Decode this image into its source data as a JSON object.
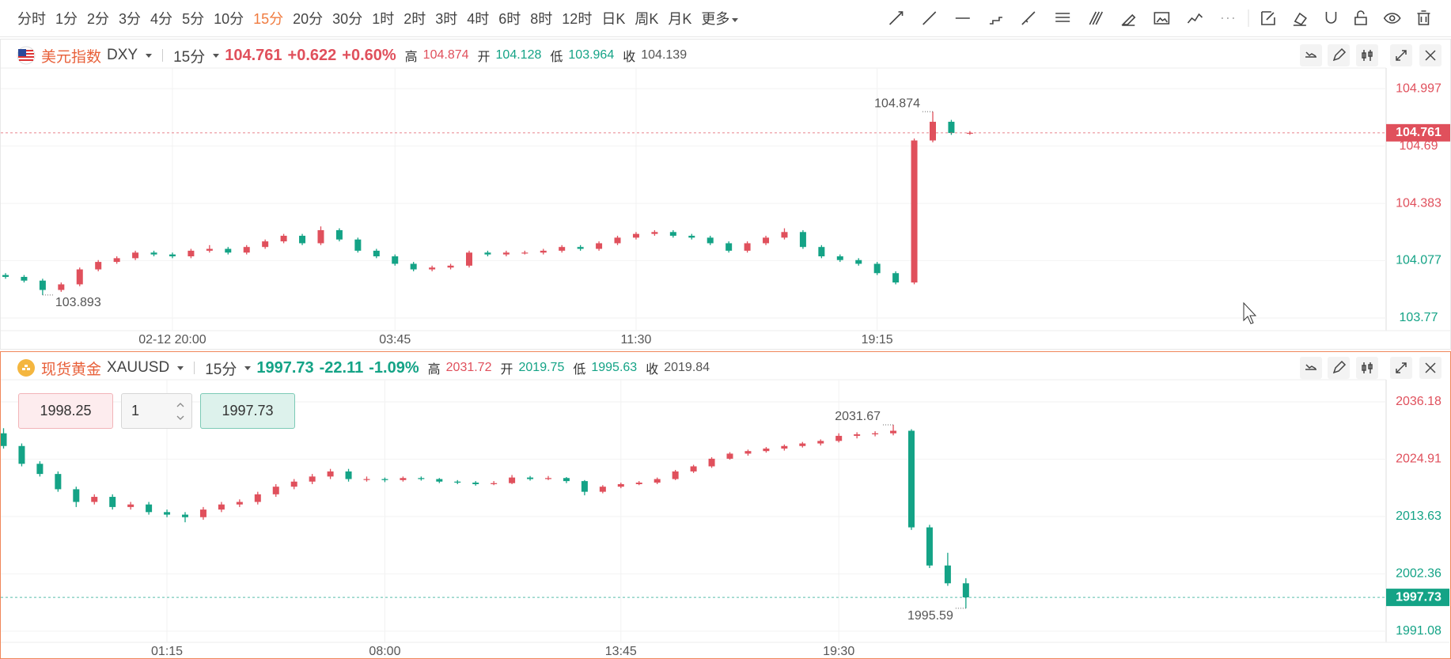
{
  "toolbar": {
    "periods": [
      "分时",
      "1分",
      "2分",
      "3分",
      "4分",
      "5分",
      "10分",
      "15分",
      "20分",
      "30分",
      "1时",
      "2时",
      "3时",
      "4时",
      "6时",
      "8时",
      "12时",
      "日K",
      "周K",
      "月K"
    ],
    "active": "15分",
    "more": "更多"
  },
  "colors": {
    "up": "#e0505c",
    "down": "#14a386"
  },
  "chart_data": [
    {
      "type": "candlestick",
      "name": "美元指数",
      "symbol": "DXY",
      "interval": "15分",
      "last": 104.761,
      "change": {
        "value": 0.622,
        "label": "+0.622"
      },
      "change_pct": {
        "value": 0.6,
        "label": "+0.60%"
      },
      "high_label": "高",
      "high": 104.874,
      "open_label": "开",
      "open": 104.128,
      "low_label": "低",
      "low": 103.964,
      "close_label": "收",
      "close": 104.139,
      "ylim": [
        103.719,
        105.044
      ],
      "yticks": [
        104.997,
        104.69,
        104.383,
        104.077,
        103.77
      ],
      "categories": [
        null,
        null,
        null,
        null,
        null,
        null,
        null,
        null,
        null,
        "02-12 20:00",
        null,
        null,
        null,
        null,
        null,
        null,
        null,
        null,
        null,
        null,
        null,
        "03:45",
        null,
        null,
        null,
        null,
        null,
        null,
        null,
        null,
        null,
        null,
        null,
        null,
        "11:30",
        null,
        null,
        null,
        null,
        null,
        null,
        null,
        null,
        null,
        null,
        null,
        null,
        "19:15",
        null,
        null,
        null,
        null,
        null
      ],
      "candles": [
        [
          104.0,
          104.01,
          103.98,
          103.99
        ],
        [
          103.99,
          104.0,
          103.96,
          103.97
        ],
        [
          103.97,
          103.98,
          103.893,
          103.92
        ],
        [
          103.92,
          103.96,
          103.91,
          103.95
        ],
        [
          103.95,
          104.04,
          103.94,
          104.03
        ],
        [
          104.03,
          104.08,
          104.02,
          104.07
        ],
        [
          104.07,
          104.1,
          104.06,
          104.09
        ],
        [
          104.09,
          104.13,
          104.08,
          104.12
        ],
        [
          104.12,
          104.13,
          104.1,
          104.11
        ],
        [
          104.11,
          104.12,
          104.09,
          104.1
        ],
        [
          104.1,
          104.14,
          104.09,
          104.13
        ],
        [
          104.13,
          104.16,
          104.12,
          104.14
        ],
        [
          104.14,
          104.15,
          104.11,
          104.12
        ],
        [
          104.12,
          104.16,
          104.11,
          104.15
        ],
        [
          104.15,
          104.19,
          104.14,
          104.18
        ],
        [
          104.18,
          104.22,
          104.17,
          104.21
        ],
        [
          104.21,
          104.22,
          104.16,
          104.17
        ],
        [
          104.17,
          104.26,
          104.16,
          104.24
        ],
        [
          104.24,
          104.25,
          104.18,
          104.19
        ],
        [
          104.19,
          104.2,
          104.12,
          104.13
        ],
        [
          104.13,
          104.14,
          104.09,
          104.1
        ],
        [
          104.1,
          104.11,
          104.05,
          104.06
        ],
        [
          104.06,
          104.07,
          104.02,
          104.03
        ],
        [
          104.03,
          104.05,
          104.02,
          104.04
        ],
        [
          104.04,
          104.06,
          104.03,
          104.05
        ],
        [
          104.05,
          104.13,
          104.04,
          104.12
        ],
        [
          104.12,
          104.13,
          104.1,
          104.11
        ],
        [
          104.11,
          104.13,
          104.1,
          104.12
        ],
        [
          104.12,
          104.13,
          104.11,
          104.12
        ],
        [
          104.12,
          104.14,
          104.11,
          104.13
        ],
        [
          104.13,
          104.16,
          104.12,
          104.15
        ],
        [
          104.15,
          104.16,
          104.13,
          104.14
        ],
        [
          104.14,
          104.18,
          104.13,
          104.17
        ],
        [
          104.17,
          104.21,
          104.16,
          104.2
        ],
        [
          104.2,
          104.23,
          104.19,
          104.22
        ],
        [
          104.22,
          104.24,
          104.21,
          104.23
        ],
        [
          104.23,
          104.24,
          104.2,
          104.21
        ],
        [
          104.21,
          104.22,
          104.19,
          104.2
        ],
        [
          104.2,
          104.21,
          104.16,
          104.17
        ],
        [
          104.17,
          104.18,
          104.12,
          104.13
        ],
        [
          104.13,
          104.18,
          104.12,
          104.17
        ],
        [
          104.17,
          104.21,
          104.16,
          104.2
        ],
        [
          104.2,
          104.25,
          104.19,
          104.23
        ],
        [
          104.23,
          104.24,
          104.14,
          104.15
        ],
        [
          104.15,
          104.16,
          104.09,
          104.1
        ],
        [
          104.1,
          104.11,
          104.07,
          104.08
        ],
        [
          104.08,
          104.09,
          104.05,
          104.06
        ],
        [
          104.06,
          104.07,
          104.0,
          104.01
        ],
        [
          104.01,
          104.02,
          103.95,
          103.96
        ],
        [
          103.96,
          104.73,
          103.95,
          104.72
        ],
        [
          104.72,
          104.874,
          104.71,
          104.82
        ],
        [
          104.82,
          104.83,
          104.75,
          104.76
        ],
        [
          104.76,
          104.77,
          104.75,
          104.761
        ]
      ]
    },
    {
      "type": "candlestick",
      "name": "现货黄金",
      "symbol": "XAUUSD",
      "interval": "15分",
      "last": 1997.73,
      "change": -22.11,
      "change_pct": {
        "value": -1.09,
        "label": "-1.09%"
      },
      "high_label": "高",
      "high": 2031.72,
      "open_label": "开",
      "open": 2019.75,
      "low_label": "低",
      "low": 1995.63,
      "close_label": "收",
      "close": 2019.84,
      "sell": 1998.25,
      "quantity": 1,
      "buy": 1997.73,
      "ylim": [
        1989.5,
        2038.2
      ],
      "yticks": [
        2036.18,
        2024.91,
        2013.63,
        2002.36,
        1991.08
      ],
      "categories": [
        null,
        null,
        null,
        null,
        null,
        null,
        null,
        null,
        null,
        "01:15",
        null,
        null,
        null,
        null,
        null,
        null,
        null,
        null,
        null,
        null,
        null,
        "08:00",
        null,
        null,
        null,
        null,
        null,
        null,
        null,
        null,
        null,
        null,
        null,
        null,
        "13:45",
        null,
        null,
        null,
        null,
        null,
        null,
        null,
        null,
        null,
        null,
        null,
        "19:30",
        null,
        null,
        null,
        null,
        null,
        null,
        null
      ],
      "candles": [
        [
          2030.0,
          2031.0,
          2027.0,
          2027.5
        ],
        [
          2027.5,
          2028.0,
          2023.5,
          2024.0
        ],
        [
          2024.0,
          2024.5,
          2021.5,
          2022.0
        ],
        [
          2022.0,
          2022.5,
          2018.5,
          2019.0
        ],
        [
          2019.0,
          2019.5,
          2015.5,
          2016.5
        ],
        [
          2016.5,
          2018.0,
          2016.0,
          2017.5
        ],
        [
          2017.5,
          2018.0,
          2015.0,
          2015.5
        ],
        [
          2015.5,
          2016.5,
          2015.0,
          2016.0
        ],
        [
          2016.0,
          2016.5,
          2014.0,
          2014.5
        ],
        [
          2014.5,
          2015.0,
          2013.5,
          2014.0
        ],
        [
          2014.0,
          2014.5,
          2012.5,
          2013.5
        ],
        [
          2013.5,
          2015.5,
          2013.0,
          2015.0
        ],
        [
          2015.0,
          2016.5,
          2014.5,
          2016.0
        ],
        [
          2016.0,
          2017.0,
          2015.5,
          2016.5
        ],
        [
          2016.5,
          2018.5,
          2016.0,
          2018.0
        ],
        [
          2018.0,
          2020.0,
          2017.5,
          2019.5
        ],
        [
          2019.5,
          2021.0,
          2019.0,
          2020.5
        ],
        [
          2020.5,
          2022.0,
          2020.0,
          2021.5
        ],
        [
          2021.5,
          2023.0,
          2021.0,
          2022.5
        ],
        [
          2022.5,
          2023.0,
          2020.5,
          2021.0
        ],
        [
          2021.0,
          2021.5,
          2020.5,
          2021.0
        ],
        [
          2021.0,
          2021.3,
          2020.4,
          2020.8
        ],
        [
          2020.8,
          2021.5,
          2020.5,
          2021.2
        ],
        [
          2021.2,
          2021.5,
          2020.7,
          2021.0
        ],
        [
          2021.0,
          2021.2,
          2020.2,
          2020.5
        ],
        [
          2020.5,
          2020.8,
          2020.0,
          2020.3
        ],
        [
          2020.3,
          2020.6,
          2019.7,
          2020.0
        ],
        [
          2020.0,
          2020.6,
          2019.8,
          2020.2
        ],
        [
          2020.2,
          2021.8,
          2020.0,
          2021.3
        ],
        [
          2021.3,
          2021.6,
          2020.7,
          2021.0
        ],
        [
          2021.0,
          2021.6,
          2020.8,
          2021.2
        ],
        [
          2021.2,
          2021.4,
          2020.2,
          2020.6
        ],
        [
          2020.6,
          2020.8,
          2017.8,
          2018.5
        ],
        [
          2018.5,
          2019.8,
          2018.2,
          2019.5
        ],
        [
          2019.5,
          2020.3,
          2019.2,
          2020.0
        ],
        [
          2020.0,
          2020.6,
          2019.8,
          2020.3
        ],
        [
          2020.3,
          2021.3,
          2020.0,
          2021.0
        ],
        [
          2021.0,
          2022.8,
          2020.8,
          2022.5
        ],
        [
          2022.5,
          2023.8,
          2022.2,
          2023.5
        ],
        [
          2023.5,
          2025.3,
          2023.2,
          2025.0
        ],
        [
          2025.0,
          2026.3,
          2024.8,
          2026.0
        ],
        [
          2026.0,
          2026.8,
          2025.6,
          2026.5
        ],
        [
          2026.5,
          2027.3,
          2026.2,
          2027.0
        ],
        [
          2027.0,
          2027.8,
          2026.6,
          2027.5
        ],
        [
          2027.5,
          2028.3,
          2027.2,
          2028.0
        ],
        [
          2028.0,
          2028.8,
          2027.6,
          2028.5
        ],
        [
          2028.5,
          2030.0,
          2028.2,
          2029.5
        ],
        [
          2029.5,
          2030.2,
          2029.0,
          2029.8
        ],
        [
          2029.8,
          2030.4,
          2029.4,
          2030.0
        ],
        [
          2030.0,
          2031.67,
          2029.6,
          2030.5
        ],
        [
          2030.5,
          2030.8,
          2011.0,
          2011.5
        ],
        [
          2011.5,
          2012.0,
          2003.5,
          2004.0
        ],
        [
          2004.0,
          2006.5,
          2000.0,
          2000.5
        ],
        [
          2000.5,
          2001.5,
          1995.59,
          1997.73
        ]
      ]
    }
  ]
}
